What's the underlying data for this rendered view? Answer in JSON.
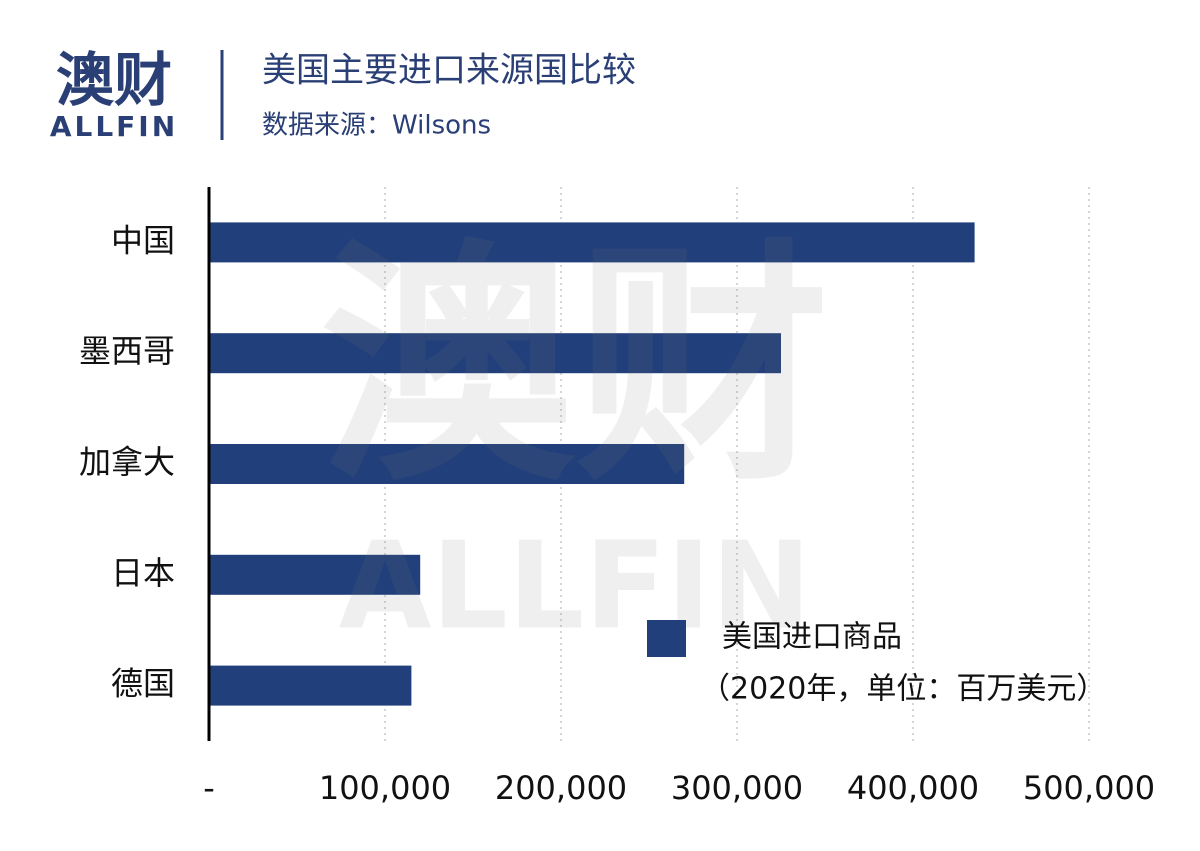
{
  "logo": {
    "mark": "澳财",
    "name": "ALLFIN"
  },
  "watermark": {
    "mark": "澳财",
    "name": "ALLFIN"
  },
  "chart_data": {
    "type": "hbar",
    "title": "美国主要进口来源国比较",
    "subtitle": "数据来源：Wilsons",
    "categories": [
      "中国",
      "墨西哥",
      "加拿大",
      "日本",
      "德国"
    ],
    "series": [
      {
        "name": "美国进口商品",
        "color": "#213f7a",
        "values": [
          435000,
          325000,
          270000,
          120000,
          115000
        ]
      }
    ],
    "legend_note": "（2020年，单位：百万美元）",
    "xlim": [
      0,
      500000
    ],
    "xticks": [
      {
        "value": 0,
        "label": "-"
      },
      {
        "value": 100000,
        "label": "100,000"
      },
      {
        "value": 200000,
        "label": "200,000"
      },
      {
        "value": 300000,
        "label": "300,000"
      },
      {
        "value": 400000,
        "label": "400,000"
      },
      {
        "value": 500000,
        "label": "500,000"
      }
    ],
    "grid": true
  }
}
